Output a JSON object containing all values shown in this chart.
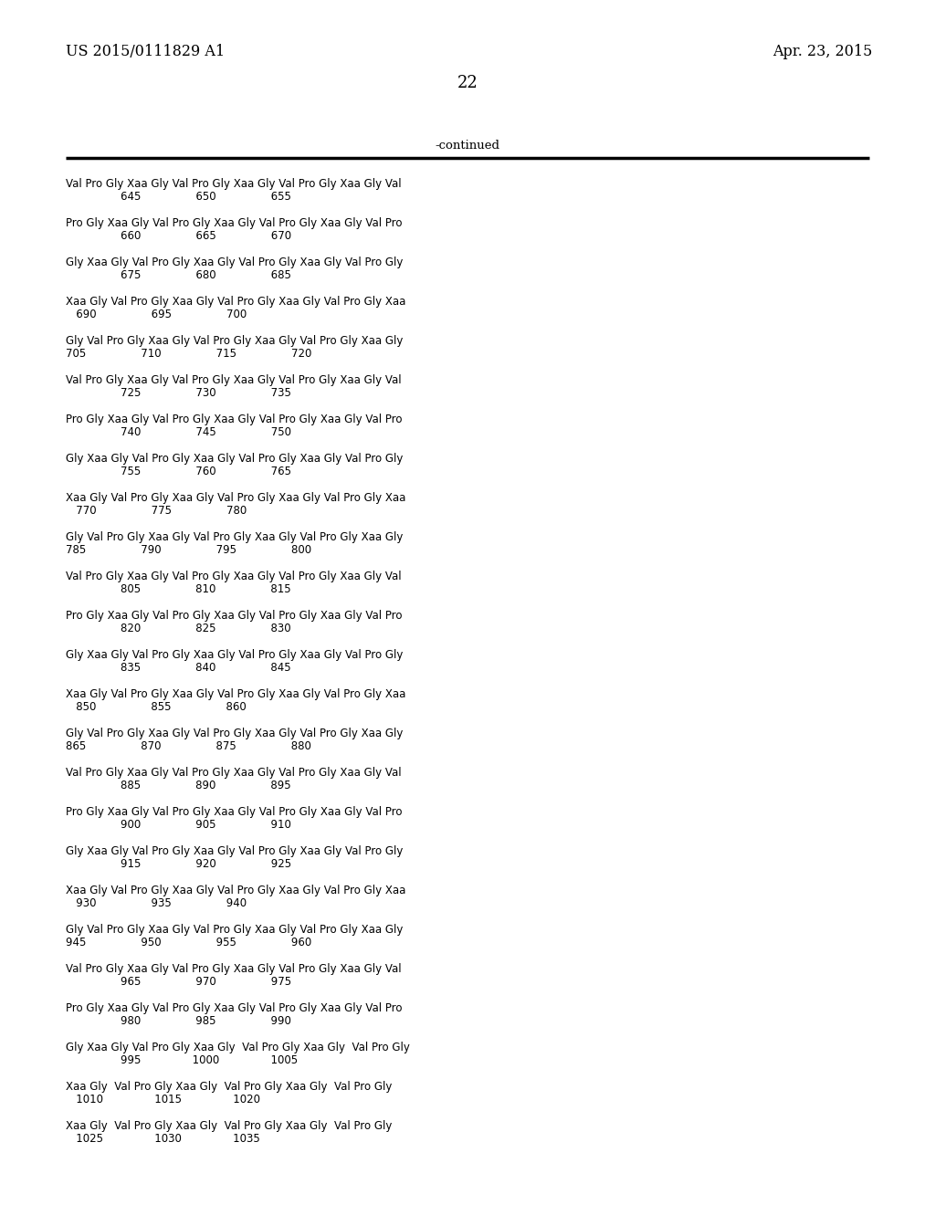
{
  "header_left": "US 2015/0111829 A1",
  "header_right": "Apr. 23, 2015",
  "page_number": "22",
  "continued_label": "-continued",
  "background_color": "#ffffff",
  "text_color": "#000000",
  "seq_blocks": [
    [
      "Val Pro Gly Xaa Gly Val Pro Gly Xaa Gly Val Pro Gly Xaa Gly Val",
      "                645                650                655"
    ],
    [
      "Pro Gly Xaa Gly Val Pro Gly Xaa Gly Val Pro Gly Xaa Gly Val Pro",
      "                660                665                670"
    ],
    [
      "Gly Xaa Gly Val Pro Gly Xaa Gly Val Pro Gly Xaa Gly Val Pro Gly",
      "                675                680                685"
    ],
    [
      "Xaa Gly Val Pro Gly Xaa Gly Val Pro Gly Xaa Gly Val Pro Gly Xaa",
      "   690                695                700"
    ],
    [
      "Gly Val Pro Gly Xaa Gly Val Pro Gly Xaa Gly Val Pro Gly Xaa Gly",
      "705                710                715                720"
    ],
    [
      "Val Pro Gly Xaa Gly Val Pro Gly Xaa Gly Val Pro Gly Xaa Gly Val",
      "                725                730                735"
    ],
    [
      "Pro Gly Xaa Gly Val Pro Gly Xaa Gly Val Pro Gly Xaa Gly Val Pro",
      "                740                745                750"
    ],
    [
      "Gly Xaa Gly Val Pro Gly Xaa Gly Val Pro Gly Xaa Gly Val Pro Gly",
      "                755                760                765"
    ],
    [
      "Xaa Gly Val Pro Gly Xaa Gly Val Pro Gly Xaa Gly Val Pro Gly Xaa",
      "   770                775                780"
    ],
    [
      "Gly Val Pro Gly Xaa Gly Val Pro Gly Xaa Gly Val Pro Gly Xaa Gly",
      "785                790                795                800"
    ],
    [
      "Val Pro Gly Xaa Gly Val Pro Gly Xaa Gly Val Pro Gly Xaa Gly Val",
      "                805                810                815"
    ],
    [
      "Pro Gly Xaa Gly Val Pro Gly Xaa Gly Val Pro Gly Xaa Gly Val Pro",
      "                820                825                830"
    ],
    [
      "Gly Xaa Gly Val Pro Gly Xaa Gly Val Pro Gly Xaa Gly Val Pro Gly",
      "                835                840                845"
    ],
    [
      "Xaa Gly Val Pro Gly Xaa Gly Val Pro Gly Xaa Gly Val Pro Gly Xaa",
      "   850                855                860"
    ],
    [
      "Gly Val Pro Gly Xaa Gly Val Pro Gly Xaa Gly Val Pro Gly Xaa Gly",
      "865                870                875                880"
    ],
    [
      "Val Pro Gly Xaa Gly Val Pro Gly Xaa Gly Val Pro Gly Xaa Gly Val",
      "                885                890                895"
    ],
    [
      "Pro Gly Xaa Gly Val Pro Gly Xaa Gly Val Pro Gly Xaa Gly Val Pro",
      "                900                905                910"
    ],
    [
      "Gly Xaa Gly Val Pro Gly Xaa Gly Val Pro Gly Xaa Gly Val Pro Gly",
      "                915                920                925"
    ],
    [
      "Xaa Gly Val Pro Gly Xaa Gly Val Pro Gly Xaa Gly Val Pro Gly Xaa",
      "   930                935                940"
    ],
    [
      "Gly Val Pro Gly Xaa Gly Val Pro Gly Xaa Gly Val Pro Gly Xaa Gly",
      "945                950                955                960"
    ],
    [
      "Val Pro Gly Xaa Gly Val Pro Gly Xaa Gly Val Pro Gly Xaa Gly Val",
      "                965                970                975"
    ],
    [
      "Pro Gly Xaa Gly Val Pro Gly Xaa Gly Val Pro Gly Xaa Gly Val Pro",
      "                980                985                990"
    ],
    [
      "Gly Xaa Gly Val Pro Gly Xaa Gly  Val Pro Gly Xaa Gly  Val Pro Gly",
      "                995               1000               1005"
    ],
    [
      "Xaa Gly  Val Pro Gly Xaa Gly  Val Pro Gly Xaa Gly  Val Pro Gly",
      "   1010               1015               1020"
    ],
    [
      "Xaa Gly  Val Pro Gly Xaa Gly  Val Pro Gly Xaa Gly  Val Pro Gly",
      "   1025               1030               1035"
    ]
  ]
}
